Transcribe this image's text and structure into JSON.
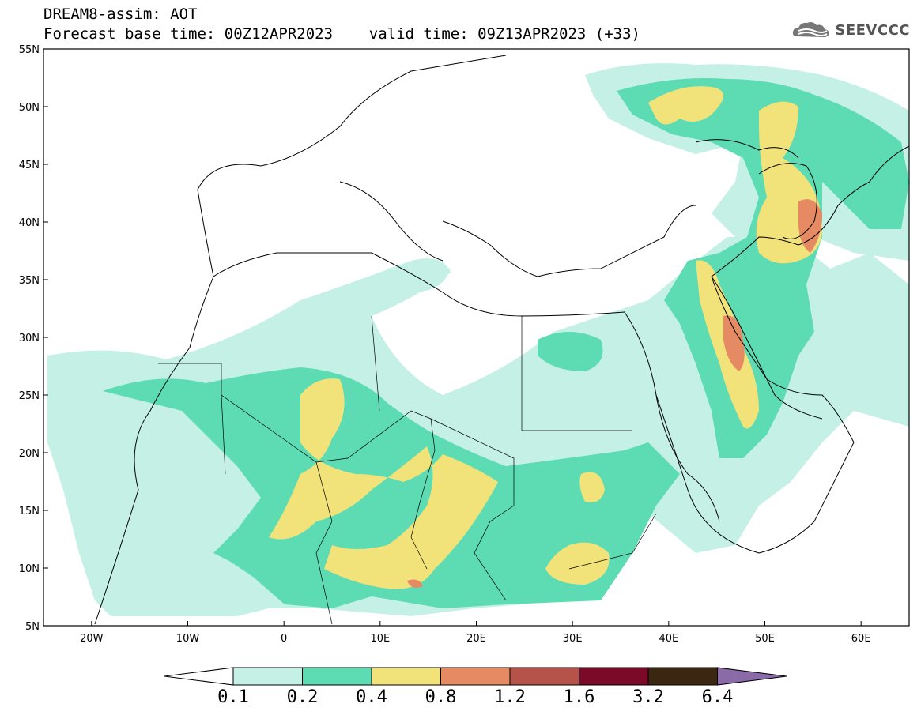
{
  "header": {
    "line1": "DREAM8-assim: AOT",
    "line2": "Forecast base time: 00Z12APR2023    valid time: 09Z13APR2023 (+33)"
  },
  "logo": {
    "text": "SEEVCCC",
    "icon": "cloud-logo-icon"
  },
  "map": {
    "lon_range": [
      -25,
      65
    ],
    "lat_range": [
      5,
      55
    ],
    "x_ticks": [
      "20W",
      "10W",
      "0",
      "10E",
      "20E",
      "30E",
      "40E",
      "50E",
      "60E"
    ],
    "y_ticks": [
      "5N",
      "10N",
      "15N",
      "20N",
      "25N",
      "30N",
      "35N",
      "40N",
      "45N",
      "50N",
      "55N"
    ],
    "variable": "AOT"
  },
  "colorbar": {
    "labels": [
      "0.1",
      "0.2",
      "0.4",
      "0.8",
      "1.2",
      "1.6",
      "3.2",
      "6.4"
    ],
    "colors": [
      "#ffffff",
      "#c4f0e6",
      "#5ddcb4",
      "#f2e27a",
      "#e58a62",
      "#b5534a",
      "#7a0a28",
      "#3b2612",
      "#8b6aa8"
    ]
  }
}
